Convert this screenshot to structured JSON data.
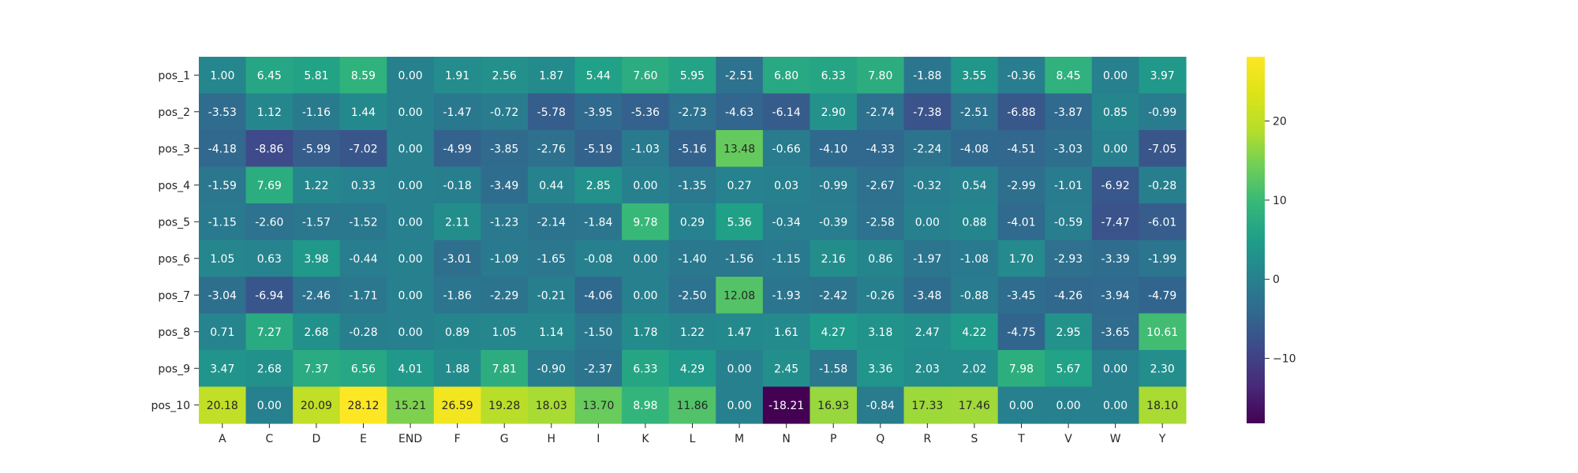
{
  "chart_data": {
    "type": "heatmap",
    "x_categories": [
      "A",
      "C",
      "D",
      "E",
      "END",
      "F",
      "G",
      "H",
      "I",
      "K",
      "L",
      "M",
      "N",
      "P",
      "Q",
      "R",
      "S",
      "T",
      "V",
      "W",
      "Y"
    ],
    "y_categories": [
      "pos_1",
      "pos_2",
      "pos_3",
      "pos_4",
      "pos_5",
      "pos_6",
      "pos_7",
      "pos_8",
      "pos_9",
      "pos_10"
    ],
    "values": [
      [
        1.0,
        6.45,
        5.81,
        8.59,
        0.0,
        1.91,
        2.56,
        1.87,
        5.44,
        7.6,
        5.95,
        -2.51,
        6.8,
        6.33,
        7.8,
        -1.88,
        3.55,
        -0.36,
        8.45,
        0.0,
        3.97
      ],
      [
        -3.53,
        1.12,
        -1.16,
        1.44,
        0.0,
        -1.47,
        -0.72,
        -5.78,
        -3.95,
        -5.36,
        -2.73,
        -4.63,
        -6.14,
        2.9,
        -2.74,
        -7.38,
        -2.51,
        -6.88,
        -3.87,
        0.85,
        -0.99
      ],
      [
        -4.18,
        -8.86,
        -5.99,
        -7.02,
        0.0,
        -4.99,
        -3.85,
        -2.76,
        -5.19,
        -1.03,
        -5.16,
        13.48,
        -0.66,
        -4.1,
        -4.33,
        -2.24,
        -4.08,
        -4.51,
        -3.03,
        0.0,
        -7.05
      ],
      [
        -1.59,
        7.69,
        1.22,
        0.33,
        0.0,
        -0.18,
        -3.49,
        0.44,
        2.85,
        0.0,
        -1.35,
        0.27,
        0.03,
        -0.99,
        -2.67,
        -0.32,
        0.54,
        -2.99,
        -1.01,
        -6.92,
        -0.28
      ],
      [
        -1.15,
        -2.6,
        -1.57,
        -1.52,
        0.0,
        2.11,
        -1.23,
        -2.14,
        -1.84,
        9.78,
        0.29,
        5.36,
        -0.34,
        -0.39,
        -2.58,
        0.0,
        0.88,
        -4.01,
        -0.59,
        -7.47,
        -6.01
      ],
      [
        1.05,
        0.63,
        3.98,
        -0.44,
        0.0,
        -3.01,
        -1.09,
        -1.65,
        -0.08,
        0.0,
        -1.4,
        -1.56,
        -1.15,
        2.16,
        0.86,
        -1.97,
        -1.08,
        1.7,
        -2.93,
        -3.39,
        -1.99
      ],
      [
        -3.04,
        -6.94,
        -2.46,
        -1.71,
        0.0,
        -1.86,
        -2.29,
        -0.21,
        -4.06,
        0.0,
        -2.5,
        12.08,
        -1.93,
        -2.42,
        -0.26,
        -3.48,
        -0.88,
        -3.45,
        -4.26,
        -3.94,
        -4.79
      ],
      [
        0.71,
        7.27,
        2.68,
        -0.28,
        0.0,
        0.89,
        1.05,
        1.14,
        -1.5,
        1.78,
        1.22,
        1.47,
        1.61,
        4.27,
        3.18,
        2.47,
        4.22,
        -4.75,
        2.95,
        -3.65,
        10.61
      ],
      [
        3.47,
        2.68,
        7.37,
        6.56,
        4.01,
        1.88,
        7.81,
        -0.9,
        -2.37,
        6.33,
        4.29,
        0.0,
        2.45,
        -1.58,
        3.36,
        2.03,
        2.02,
        7.98,
        5.67,
        0.0,
        2.3
      ],
      [
        20.18,
        0.0,
        20.09,
        28.12,
        15.21,
        26.59,
        19.28,
        18.03,
        13.7,
        8.98,
        11.86,
        0.0,
        -18.21,
        16.93,
        -0.84,
        17.33,
        17.46,
        0.0,
        0.0,
        0.0,
        18.1
      ]
    ],
    "value_format": "2 decimals",
    "vmin": -18.21,
    "vmax": 28.12,
    "colormap": "viridis",
    "colorbar_ticks": [
      -10,
      0,
      10,
      20
    ],
    "title": "",
    "xlabel": "",
    "ylabel": "",
    "grid": false
  }
}
